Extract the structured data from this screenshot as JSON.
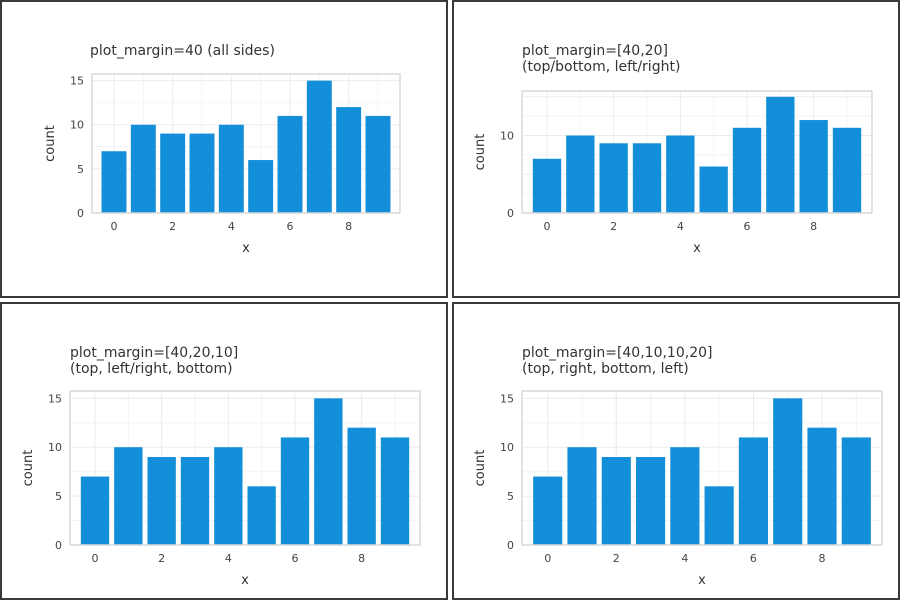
{
  "chart_data": [
    {
      "type": "bar",
      "title_lines": [
        "plot_margin=40 (all sides)"
      ],
      "xlabel": "x",
      "ylabel": "count",
      "x": [
        0,
        1,
        2,
        3,
        4,
        5,
        6,
        7,
        8,
        9
      ],
      "values": [
        7,
        10,
        9,
        9,
        10,
        6,
        11,
        15,
        12,
        11
      ],
      "xticks": [
        "0",
        "2",
        "4",
        "6",
        "8"
      ],
      "yticks": [
        "0",
        "5",
        "10",
        "15"
      ],
      "ylim": [
        0,
        15.75
      ],
      "grid": true,
      "color": "#128fd8"
    },
    {
      "type": "bar",
      "title_lines": [
        "plot_margin=[40,20]",
        "(top/bottom, left/right)"
      ],
      "xlabel": "x",
      "ylabel": "count",
      "x": [
        0,
        1,
        2,
        3,
        4,
        5,
        6,
        7,
        8,
        9
      ],
      "values": [
        7,
        10,
        9,
        9,
        10,
        6,
        11,
        15,
        12,
        11
      ],
      "xticks": [
        "0",
        "2",
        "4",
        "6",
        "8"
      ],
      "yticks": [
        "0",
        "10"
      ],
      "ylim": [
        0,
        15.75
      ],
      "grid": true,
      "color": "#128fd8"
    },
    {
      "type": "bar",
      "title_lines": [
        "plot_margin=[40,20,10]",
        "(top, left/right, bottom)"
      ],
      "xlabel": "x",
      "ylabel": "count",
      "x": [
        0,
        1,
        2,
        3,
        4,
        5,
        6,
        7,
        8,
        9
      ],
      "values": [
        7,
        10,
        9,
        9,
        10,
        6,
        11,
        15,
        12,
        11
      ],
      "xticks": [
        "0",
        "2",
        "4",
        "6",
        "8"
      ],
      "yticks": [
        "0",
        "5",
        "10",
        "15"
      ],
      "ylim": [
        0,
        15.75
      ],
      "grid": true,
      "color": "#128fd8"
    },
    {
      "type": "bar",
      "title_lines": [
        "plot_margin=[40,10,10,20]",
        "(top, right, bottom, left)"
      ],
      "xlabel": "x",
      "ylabel": "count",
      "x": [
        0,
        1,
        2,
        3,
        4,
        5,
        6,
        7,
        8,
        9
      ],
      "values": [
        7,
        10,
        9,
        9,
        10,
        6,
        11,
        15,
        12,
        11
      ],
      "xticks": [
        "0",
        "2",
        "4",
        "6",
        "8"
      ],
      "yticks": [
        "0",
        "5",
        "10",
        "15"
      ],
      "ylim": [
        0,
        15.75
      ],
      "grid": true,
      "color": "#128fd8"
    }
  ]
}
